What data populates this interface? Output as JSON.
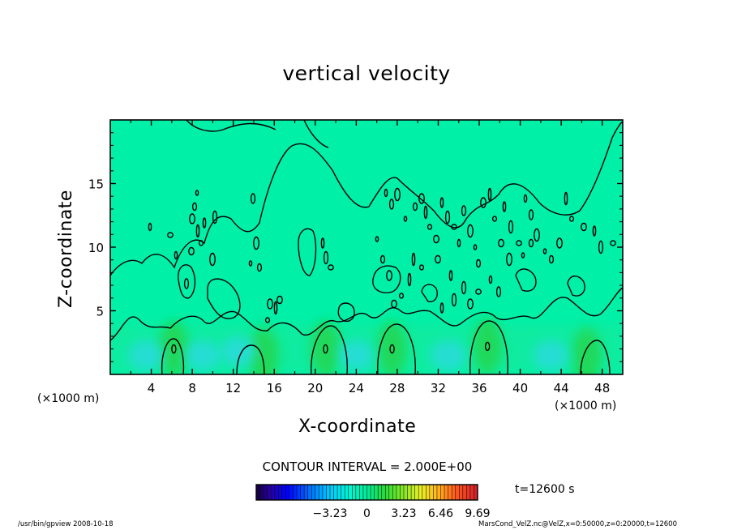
{
  "chart_data": {
    "type": "heatmap",
    "title": "vertical velocity",
    "xlabel": "X-coordinate",
    "ylabel": "Z-coordinate",
    "x_unit_label": "(×1000 m)",
    "x_unit_label_right": "(×1000 m)",
    "xlim": [
      0,
      50
    ],
    "ylim": [
      0,
      20
    ],
    "x_ticks": [
      4,
      8,
      12,
      16,
      20,
      24,
      28,
      32,
      36,
      40,
      44,
      48
    ],
    "y_ticks": [
      5,
      10,
      15
    ],
    "contour_interval_label": "CONTOUR INTERVAL = 2.000E+00",
    "colorbar": {
      "range": [
        -9.69,
        9.69
      ],
      "tick_values": [
        -3.23,
        0,
        3.23,
        6.46,
        9.69
      ],
      "tick_labels": [
        "−3.23",
        "0",
        "3.23",
        "6.46",
        "9.69"
      ]
    },
    "time_label": "t=12600 s",
    "field_description": "2-D field of vertical velocity; near zero over most of the domain, positive updraft cells near the surface and scattered small-scale cells between about z=3 and z=15 km",
    "updraft_centers": [
      {
        "x": 6.2,
        "z": 2.0
      },
      {
        "x": 21.0,
        "z": 2.0
      },
      {
        "x": 27.5,
        "z": 2.0
      },
      {
        "x": 36.8,
        "z": 2.2
      },
      {
        "x": 15.0,
        "z": 1.5
      },
      {
        "x": 46.5,
        "z": 1.5
      }
    ],
    "downdraft_centers": [
      {
        "x": 3.5,
        "z": 1.5
      },
      {
        "x": 9.0,
        "z": 1.5
      },
      {
        "x": 12.5,
        "z": 1.8
      },
      {
        "x": 24.0,
        "z": 1.5
      },
      {
        "x": 33.0,
        "z": 1.5
      },
      {
        "x": 43.0,
        "z": 1.5
      }
    ]
  },
  "footer": {
    "left": "/usr/bin/gpview   2008-10-18",
    "right": "MarsCond_VelZ.nc@VelZ,x=0:50000,z=0:20000,t=12600"
  },
  "colors": {
    "background": "#00f0a8",
    "contour_line": "#000000"
  }
}
